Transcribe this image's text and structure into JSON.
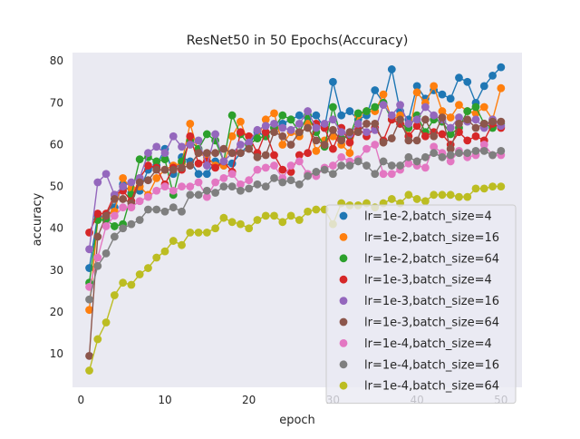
{
  "chart_data": {
    "type": "line",
    "title": "ResNet50 in 50 Epochs(Accuracy)",
    "xlabel": "epoch",
    "ylabel": "accuracy",
    "xlim": [
      -1,
      52.5
    ],
    "ylim": [
      2,
      82
    ],
    "xticks": [
      0,
      10,
      20,
      30,
      40,
      50
    ],
    "yticks": [
      10,
      20,
      30,
      40,
      50,
      60,
      70,
      80
    ],
    "grid": false,
    "legend_position": "lower-right",
    "background_color": "#eaeaf2",
    "x": [
      1,
      2,
      3,
      4,
      5,
      6,
      7,
      8,
      9,
      10,
      11,
      12,
      13,
      14,
      15,
      16,
      17,
      18,
      19,
      20,
      21,
      22,
      23,
      24,
      25,
      26,
      27,
      28,
      29,
      30,
      31,
      32,
      33,
      34,
      35,
      36,
      37,
      38,
      39,
      40,
      41,
      42,
      43,
      44,
      45,
      46,
      47,
      48,
      49,
      50
    ],
    "series": [
      {
        "name": "lr=1e-2,batch_size=4",
        "color": "#1f77b4",
        "values": [
          30.5,
          43.0,
          42.5,
          45.0,
          50.5,
          48.5,
          49.0,
          54.0,
          55.0,
          59.0,
          53.0,
          57.0,
          56.0,
          53.0,
          53.0,
          56.0,
          55.0,
          55.5,
          58.0,
          60.0,
          63.0,
          62.0,
          64.0,
          65.0,
          66.0,
          67.0,
          66.5,
          67.0,
          64.0,
          75.0,
          67.0,
          68.0,
          66.0,
          67.0,
          73.0,
          70.0,
          78.0,
          68.0,
          66.0,
          74.0,
          71.0,
          73.0,
          72.0,
          71.0,
          76.0,
          75.0,
          70.0,
          74.0,
          76.5,
          78.5
        ]
      },
      {
        "name": "lr=1e-2,batch_size=16",
        "color": "#ff7f0e",
        "values": [
          20.5,
          42.0,
          43.0,
          44.0,
          52.0,
          49.5,
          50.0,
          48.0,
          52.0,
          54.0,
          55.0,
          55.5,
          65.0,
          58.0,
          57.0,
          55.0,
          55.0,
          62.0,
          65.5,
          60.0,
          61.5,
          66.0,
          67.5,
          60.0,
          63.0,
          62.0,
          65.0,
          58.5,
          61.0,
          62.0,
          60.0,
          58.0,
          67.0,
          68.0,
          68.0,
          72.0,
          66.0,
          67.0,
          62.0,
          72.5,
          70.0,
          74.0,
          68.0,
          66.5,
          69.5,
          68.0,
          67.5,
          69.0,
          66.0,
          73.5
        ]
      },
      {
        "name": "lr=1e-2,batch_size=64",
        "color": "#2ca02c",
        "values": [
          27.0,
          42.0,
          42.0,
          40.5,
          41.0,
          48.0,
          56.5,
          57.0,
          56.0,
          56.5,
          48.0,
          56.0,
          61.0,
          59.0,
          62.5,
          61.0,
          56.0,
          67.0,
          62.5,
          60.0,
          61.5,
          62.0,
          64.0,
          67.0,
          66.0,
          63.0,
          67.0,
          63.0,
          59.5,
          69.0,
          61.5,
          62.0,
          67.5,
          68.0,
          69.0,
          70.0,
          66.0,
          65.0,
          64.0,
          67.0,
          63.0,
          66.0,
          65.5,
          62.5,
          64.0,
          68.0,
          69.0,
          65.0,
          64.0,
          65.0
        ]
      },
      {
        "name": "lr=1e-3,batch_size=4",
        "color": "#d62728",
        "values": [
          39.0,
          43.5,
          43.5,
          48.0,
          49.0,
          46.5,
          52.0,
          55.0,
          54.5,
          50.5,
          54.5,
          54.0,
          62.0,
          55.5,
          56.0,
          54.5,
          56.0,
          53.5,
          63.0,
          62.0,
          58.0,
          63.0,
          57.5,
          54.0,
          53.5,
          57.5,
          58.0,
          65.0,
          64.0,
          59.0,
          64.0,
          60.5,
          64.0,
          62.0,
          64.0,
          61.0,
          66.0,
          65.0,
          62.0,
          64.5,
          62.0,
          63.0,
          62.5,
          60.0,
          63.0,
          61.0,
          62.0,
          61.0,
          65.0,
          64.0
        ]
      },
      {
        "name": "lr=1e-3,batch_size=16",
        "color": "#9467bd",
        "values": [
          35.0,
          51.0,
          53.0,
          48.0,
          50.0,
          51.0,
          52.0,
          58.0,
          59.5,
          58.0,
          62.0,
          59.5,
          60.0,
          61.0,
          55.0,
          62.5,
          56.0,
          58.0,
          60.0,
          60.5,
          63.5,
          64.5,
          65.0,
          64.0,
          63.5,
          65.0,
          68.0,
          64.0,
          65.0,
          66.0,
          63.0,
          62.5,
          65.0,
          63.0,
          63.5,
          69.5,
          67.0,
          69.5,
          65.0,
          66.0,
          69.0,
          67.0,
          66.0,
          64.0,
          66.5,
          65.5,
          66.0,
          64.0,
          66.0,
          64.5
        ]
      },
      {
        "name": "lr=1e-3,batch_size=64",
        "color": "#8c564b",
        "values": [
          9.5,
          38.0,
          43.0,
          47.0,
          47.0,
          46.0,
          51.0,
          51.5,
          54.0,
          54.0,
          54.0,
          54.5,
          55.0,
          58.0,
          58.0,
          58.0,
          59.0,
          58.0,
          58.0,
          59.0,
          57.0,
          57.5,
          63.0,
          62.0,
          60.0,
          63.0,
          64.0,
          61.0,
          60.0,
          63.5,
          61.0,
          63.0,
          63.0,
          65.0,
          65.0,
          60.5,
          61.5,
          66.0,
          61.0,
          61.0,
          66.0,
          62.0,
          66.5,
          59.0,
          65.0,
          66.0,
          64.0,
          65.0,
          65.5,
          65.5
        ]
      },
      {
        "name": "lr=1e-4,batch_size=4",
        "color": "#e377c2",
        "values": [
          26.0,
          33.0,
          40.5,
          43.0,
          45.0,
          45.0,
          46.5,
          47.5,
          49.0,
          50.0,
          49.0,
          50.0,
          50.0,
          51.0,
          47.5,
          51.0,
          52.0,
          53.0,
          50.5,
          51.5,
          54.0,
          54.5,
          55.0,
          52.0,
          55.0,
          56.0,
          53.0,
          52.5,
          54.5,
          55.0,
          57.0,
          56.0,
          56.5,
          59.0,
          60.0,
          53.0,
          53.0,
          54.0,
          55.5,
          55.0,
          54.5,
          59.5,
          58.0,
          56.0,
          58.5,
          57.0,
          57.5,
          60.0,
          57.5,
          57.5
        ]
      },
      {
        "name": "lr=1e-4,batch_size=16",
        "color": "#7f7f7f",
        "values": [
          23.0,
          31.0,
          34.0,
          38.0,
          40.0,
          41.0,
          42.0,
          44.5,
          44.5,
          44.0,
          45.0,
          44.0,
          48.0,
          48.0,
          49.0,
          48.5,
          50.0,
          50.0,
          49.0,
          49.5,
          50.5,
          50.0,
          52.0,
          51.0,
          51.5,
          50.5,
          52.5,
          53.5,
          54.0,
          53.0,
          55.0,
          55.0,
          56.0,
          55.0,
          53.0,
          56.0,
          55.0,
          55.0,
          57.0,
          56.0,
          57.0,
          58.0,
          57.0,
          57.5,
          58.0,
          58.0,
          58.5,
          58.5,
          57.5,
          58.5
        ]
      },
      {
        "name": "lr=1e-4,batch_size=64",
        "color": "#bcbd22",
        "values": [
          6.0,
          13.5,
          17.5,
          24.0,
          27.0,
          26.5,
          29.0,
          30.5,
          33.0,
          34.5,
          37.0,
          36.0,
          39.0,
          39.0,
          39.0,
          40.0,
          42.5,
          41.5,
          41.0,
          40.0,
          42.0,
          43.0,
          43.0,
          41.5,
          43.0,
          42.0,
          44.0,
          44.5,
          44.5,
          41.0,
          46.0,
          45.5,
          45.5,
          46.0,
          45.0,
          46.0,
          47.0,
          46.0,
          48.0,
          47.0,
          46.5,
          48.0,
          48.0,
          48.0,
          47.5,
          47.5,
          49.5,
          49.5,
          50.0,
          50.0
        ]
      }
    ]
  }
}
